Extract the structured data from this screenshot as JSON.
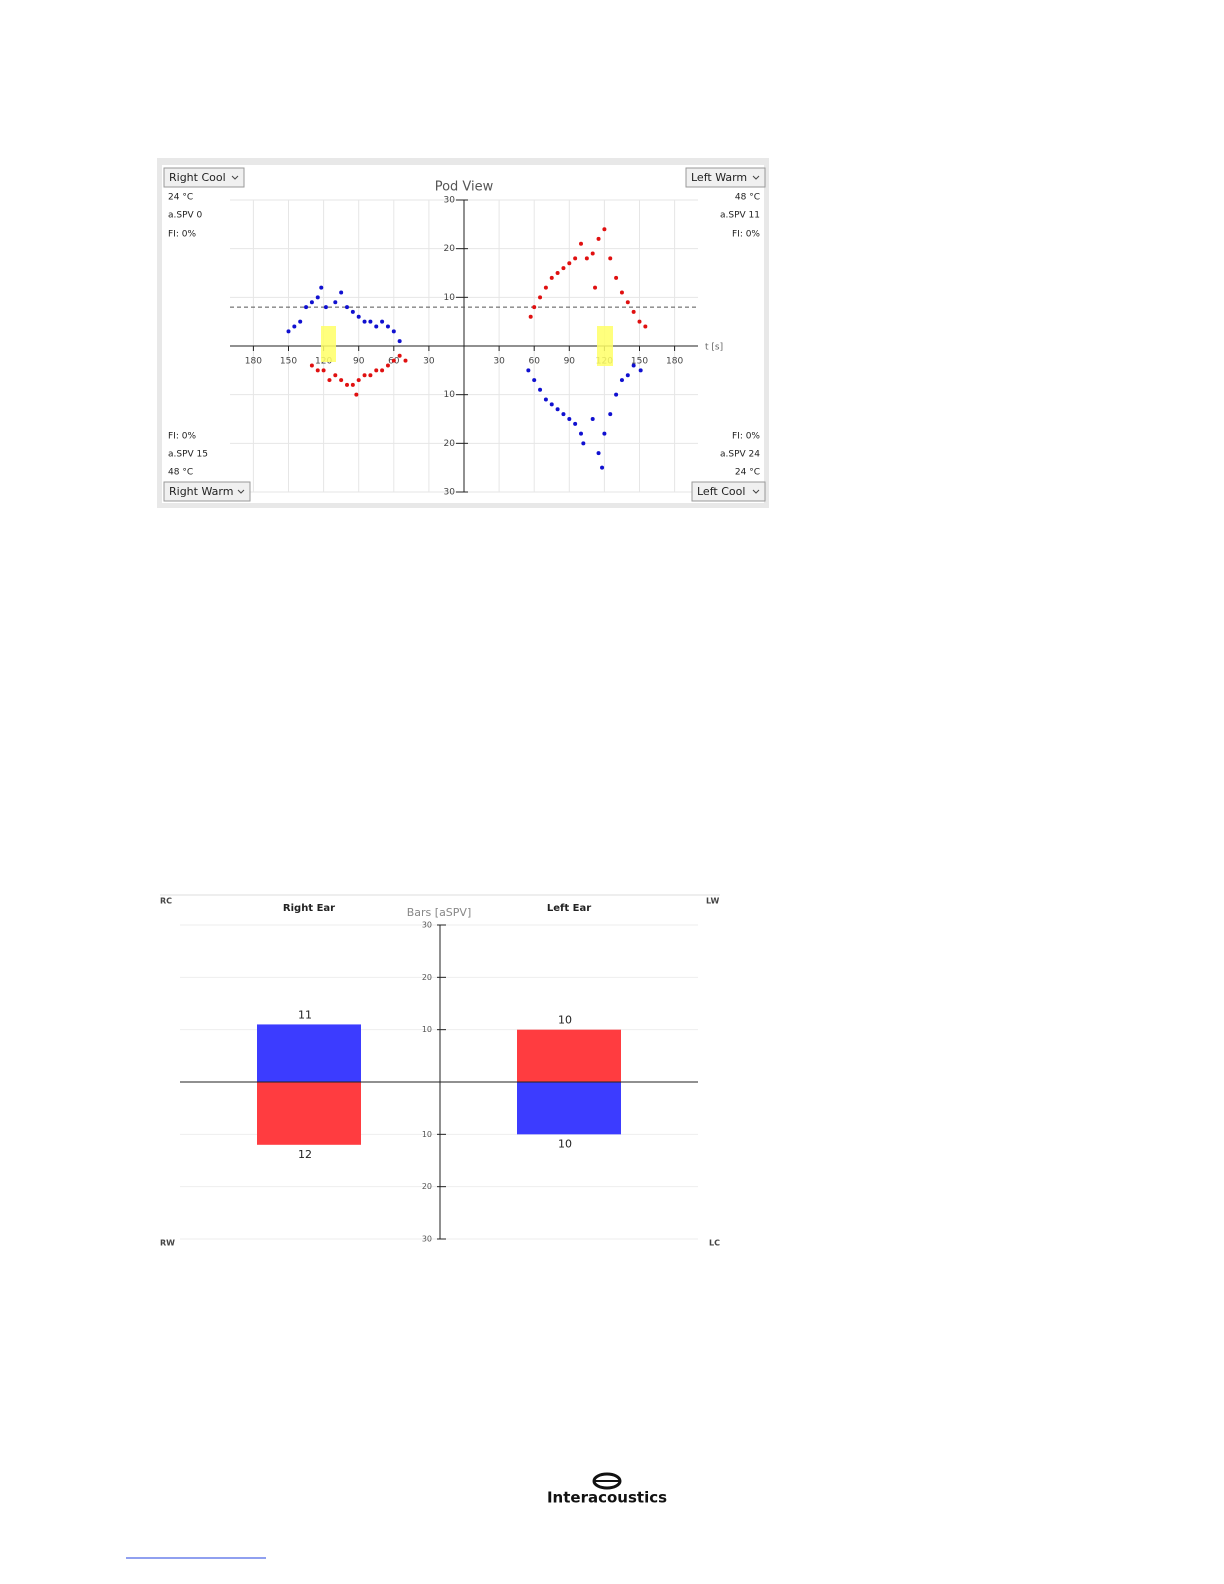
{
  "pod_view": {
    "type": "scatter",
    "title": "Pod View",
    "x_label": "t [s]",
    "xlim": [
      0,
      200
    ],
    "ylim": [
      0,
      30
    ],
    "left_xticks": [
      180,
      150,
      120,
      90,
      60,
      30
    ],
    "right_xticks": [
      30,
      60,
      90,
      120,
      150,
      180
    ],
    "yticks_up": [
      10,
      20,
      30
    ],
    "yticks_down": [
      10,
      20,
      30
    ],
    "reference_line": 8,
    "grid": true,
    "quadrants": [
      {
        "selector": "Right Cool",
        "temperature": "24 °C",
        "aspv": "a.SPV 0",
        "fi": "FI: 0%",
        "side": "left",
        "direction": "up",
        "color": "#1010d0",
        "x": [
          150,
          145,
          140,
          135,
          130,
          125,
          122,
          118,
          110,
          105,
          100,
          95,
          90,
          85,
          80,
          75,
          70,
          65,
          60,
          55
        ],
        "y": [
          3,
          4,
          5,
          8,
          9,
          10,
          12,
          8,
          9,
          11,
          8,
          7,
          6,
          5,
          5,
          4,
          5,
          4,
          3,
          1
        ]
      },
      {
        "selector": "Left Warm",
        "temperature": "48 °C",
        "aspv": "a.SPV 11",
        "fi": "FI: 0%",
        "side": "right",
        "direction": "up",
        "color": "#e01010",
        "x": [
          57,
          60,
          65,
          70,
          75,
          80,
          85,
          90,
          95,
          100,
          105,
          110,
          112,
          115,
          120,
          125,
          130,
          135,
          140,
          145,
          150,
          155
        ],
        "y": [
          6,
          8,
          10,
          12,
          14,
          15,
          16,
          17,
          18,
          21,
          18,
          19,
          12,
          22,
          24,
          18,
          14,
          11,
          9,
          7,
          5,
          4
        ]
      },
      {
        "selector": "Right Warm",
        "temperature": "48 °C",
        "aspv": "a.SPV 15",
        "fi": "FI: 0%",
        "side": "left",
        "direction": "down",
        "color": "#e01010",
        "x": [
          130,
          125,
          120,
          115,
          110,
          105,
          100,
          95,
          92,
          90,
          85,
          80,
          75,
          70,
          65,
          60,
          55,
          50
        ],
        "y": [
          4,
          5,
          5,
          7,
          6,
          7,
          8,
          8,
          10,
          7,
          6,
          6,
          5,
          5,
          4,
          3,
          2,
          3
        ]
      },
      {
        "selector": "Left Cool",
        "temperature": "24 °C",
        "aspv": "a.SPV 24",
        "fi": "FI: 0%",
        "side": "right",
        "direction": "down",
        "color": "#1010d0",
        "x": [
          55,
          60,
          65,
          70,
          75,
          80,
          85,
          90,
          95,
          100,
          102,
          110,
          115,
          118,
          120,
          125,
          130,
          135,
          140,
          145,
          151
        ],
        "y": [
          5,
          7,
          9,
          11,
          12,
          13,
          14,
          15,
          16,
          18,
          20,
          15,
          22,
          25,
          18,
          14,
          10,
          7,
          6,
          4,
          5
        ]
      }
    ]
  },
  "bars_chart": {
    "type": "bar",
    "title": "Bars [aSPV]",
    "corner_labels": {
      "top_left": "RC",
      "bottom_left": "RW",
      "top_right": "LW",
      "bottom_right": "LC"
    },
    "ylim": [
      -30,
      30
    ],
    "yticks": [
      {
        "value": -30,
        "label": "30"
      },
      {
        "value": -20,
        "label": "20"
      },
      {
        "value": -10,
        "label": "10"
      },
      {
        "value": 10,
        "label": "10"
      },
      {
        "value": 20,
        "label": "20"
      },
      {
        "value": 30,
        "label": "30"
      }
    ],
    "bars": [
      {
        "label": "Right Ear",
        "up": 11,
        "up_color": "#3c3cff",
        "down": 12,
        "down_color": "#ff3c40"
      },
      {
        "label": "Left Ear",
        "up": 10,
        "up_color": "#ff3c40",
        "down": 10,
        "down_color": "#3c3cff"
      }
    ]
  },
  "footer": {
    "logo": "Interacoustics"
  }
}
